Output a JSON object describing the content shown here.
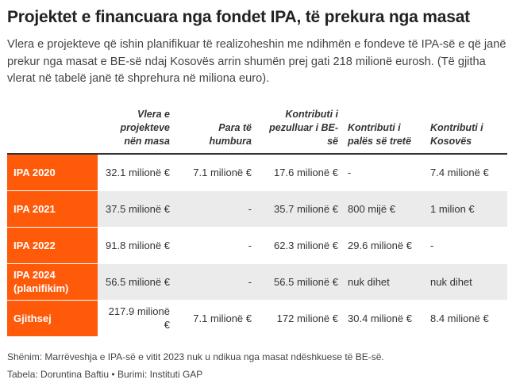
{
  "title": "Projektet e financuara nga fondet IPA, të prekura nga masat",
  "subtitle": "Vlera e projekteve që ishin planifikuar të realizoheshin me ndihmën e fondeve të IPA-së e që janë prekur nga masat e BE-së ndaj Kosovës arrin shumën prej gati 218 milionë eurosh. (Të gjitha vlerat në tabelë janë të shprehura në miliona euro).",
  "table": {
    "headers": [
      "",
      "Vlera e projekteve nën masa",
      "Para të humbura",
      "Kontributi i pezulluar i BE-së",
      "Kontributi i palës së tretë",
      "Kontributi i Kosovës"
    ],
    "rows": [
      {
        "label": "IPA 2020",
        "cells": [
          "32.1 milionë €",
          "7.1 milionë €",
          "17.6 milionë €",
          "-",
          "7.4 milionë €"
        ]
      },
      {
        "label": "IPA 2021",
        "cells": [
          "37.5 milionë €",
          "-",
          "35.7 milionë €",
          "800 mijë €",
          "1 milion €"
        ]
      },
      {
        "label": "IPA 2022",
        "cells": [
          "91.8 milionë €",
          "-",
          "62.3 milionë €",
          "29.6 milionë €",
          "-"
        ]
      },
      {
        "label": "IPA 2024 (planifikim)",
        "cells": [
          "56.5 milionë €",
          "-",
          "56.5 milionë €",
          "nuk dihet",
          "nuk dihet"
        ]
      },
      {
        "label": "Gjithsej",
        "cells": [
          "217.9 milionë €",
          "7.1 milionë €",
          "172 milionë €",
          "30.4 milionë €",
          "8.4 milionë €"
        ]
      }
    ]
  },
  "note": "Shënim: Marrëveshja e IPA-së e vitit 2023 nuk u ndikua nga masat ndëshkuese të BE-së.",
  "credit": "Tabela: Doruntina Baftiu • Burimi: Instituti GAP",
  "colors": {
    "accent": "#ff5a0a",
    "stripe": "#ebebeb",
    "text": "#333333"
  }
}
